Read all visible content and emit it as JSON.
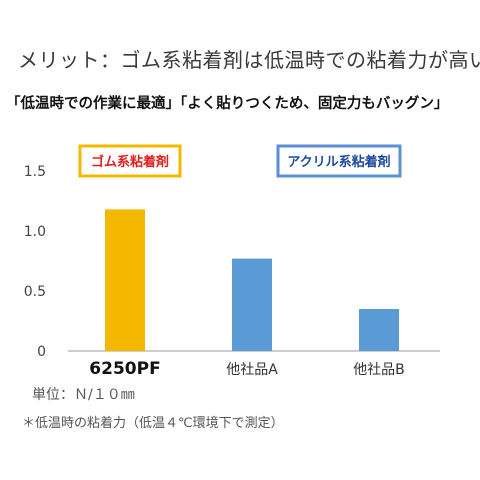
{
  "header": {
    "title": "メリット：ゴム系粘着剤は低温時での粘着力が高い",
    "subtitle": "「低温時での作業に最適」「よく貼りつくため、固定力もバッグン」"
  },
  "legend": {
    "rubber": {
      "label": "ゴム系粘着剤",
      "text_color": "#e02020",
      "border_color": "#f5b800"
    },
    "acrylic": {
      "label": "アクリル系粘着剤",
      "text_color": "#1f4a9c",
      "border_color": "#5b8fd6"
    }
  },
  "chart_data": {
    "type": "bar",
    "categories": [
      "6250PF",
      "他社品A",
      "他社品B"
    ],
    "values": [
      1.18,
      0.77,
      0.35
    ],
    "colors": [
      "#f5b800",
      "#5b9bd5",
      "#5b9bd5"
    ],
    "yticks": [
      "1.5",
      "1.0",
      "0.5",
      "0"
    ],
    "ylim": [
      0,
      1.5
    ],
    "grid": false
  },
  "notes": {
    "unit": "単位：Ｎ/１０㎜",
    "condition": "＊低温時の粘着力（低温４℃環境下で測定）"
  }
}
